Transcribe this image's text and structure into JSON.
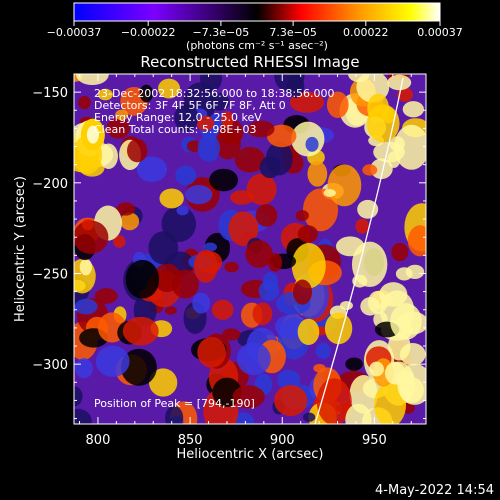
{
  "chart_data": {
    "type": "heatmap",
    "title": "Reconstructed RHESSI Image",
    "xlabel": "Heliocentric X (arcsec)",
    "ylabel": "Heliocentric Y (arcsec)",
    "xlim": [
      787,
      978
    ],
    "ylim": [
      -333,
      -140
    ],
    "x_ticks": [
      800,
      850,
      900,
      950
    ],
    "y_ticks": [
      -150,
      -200,
      -250,
      -300
    ],
    "x_tick_labels": [
      "800",
      "850",
      "900",
      "950"
    ],
    "y_tick_labels": [
      "−150",
      "−200",
      "−250",
      "−300"
    ],
    "colorbar": {
      "ticks": [
        "−0.00037",
        "−0.00022",
        "−7.3e−05",
        "7.3e−05",
        "0.00022",
        "0.00037"
      ],
      "tick_values": [
        -0.00037,
        -0.00022,
        -7.3e-05,
        7.3e-05,
        0.00022,
        0.00037
      ],
      "range": [
        -0.00037,
        0.00037
      ],
      "units": "(photons cm⁻² s⁻¹ asec⁻²)",
      "colors": [
        "#0000ff",
        "#7b00ff",
        "#000000",
        "#ff0000",
        "#ff9900",
        "#ffff00",
        "#ffffff"
      ]
    },
    "annotations": [
      "23-Dec-2002 18:32:56.000 to 18:38:56.000",
      "Detectors: 3F 4F 5F 6F 7F 8F, Att 0",
      "Energy Range: 12.0 - 25.0 keV",
      "Clean     Total counts: 5.98E+03"
    ],
    "peak_label": "Position of Peak = [794,-190]",
    "peak_position": [
      794,
      -190
    ],
    "limb": "solid white arc",
    "grid": false
  },
  "footer": {
    "timestamp": "4-May-2022 14:54"
  }
}
